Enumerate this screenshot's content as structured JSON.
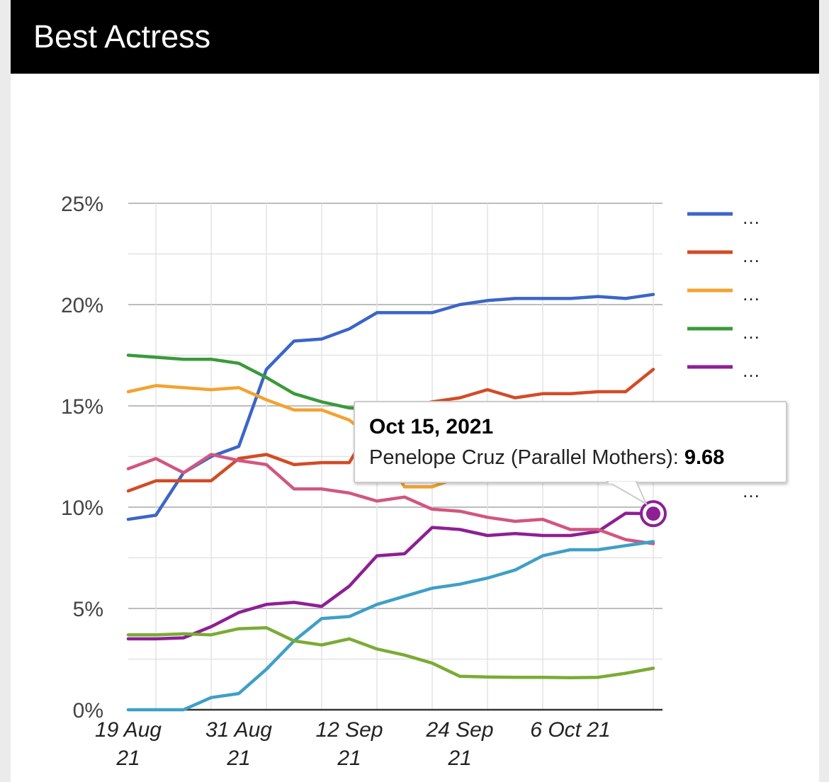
{
  "header": {
    "title": "Best Actress"
  },
  "colors": {
    "header_bg": "#000000",
    "panel_bg": "#ffffff",
    "grid_major": "#bdbdbd",
    "grid_minor": "#e3e3e3"
  },
  "chart_data": {
    "type": "line",
    "title": "Best Actress",
    "xlabel": "",
    "ylabel": "",
    "ylim": [
      0,
      25
    ],
    "xlim": [
      "2021-08-19",
      "2021-10-16"
    ],
    "yticks": [
      "0%",
      "5%",
      "10%",
      "15%",
      "20%",
      "25%"
    ],
    "xtick_labels": [
      {
        "line1": "19 Aug",
        "line2": "21",
        "date": "2021-08-19"
      },
      {
        "line1": "31 Aug",
        "line2": "21",
        "date": "2021-08-31"
      },
      {
        "line1": "12 Sep",
        "line2": "21",
        "date": "2021-09-12"
      },
      {
        "line1": "24 Sep",
        "line2": "21",
        "date": "2021-09-24"
      },
      {
        "line1": "6 Oct 21",
        "line2": "",
        "date": "2021-10-06"
      }
    ],
    "x": [
      "2021-08-19",
      "2021-08-22",
      "2021-08-25",
      "2021-08-28",
      "2021-08-31",
      "2021-09-03",
      "2021-09-06",
      "2021-09-09",
      "2021-09-12",
      "2021-09-15",
      "2021-09-18",
      "2021-09-21",
      "2021-09-24",
      "2021-09-27",
      "2021-09-30",
      "2021-10-03",
      "2021-10-06",
      "2021-10-09",
      "2021-10-12",
      "2021-10-15"
    ],
    "grid": true,
    "legend_position": "right",
    "series": [
      {
        "legend_label": "…",
        "color": "#3b65c8",
        "values": [
          9.4,
          9.6,
          11.7,
          12.5,
          13.0,
          16.8,
          18.2,
          18.3,
          18.8,
          19.6,
          19.6,
          19.6,
          20.0,
          20.2,
          20.3,
          20.3,
          20.3,
          20.4,
          20.3,
          20.5
        ]
      },
      {
        "legend_label": "…",
        "color": "#d34b25",
        "values": [
          10.8,
          11.3,
          11.3,
          11.3,
          12.4,
          12.6,
          12.1,
          12.2,
          12.2,
          14.5,
          14.9,
          15.2,
          15.4,
          15.8,
          15.4,
          15.6,
          15.6,
          15.7,
          15.7,
          16.8
        ]
      },
      {
        "legend_label": "…",
        "color": "#f2a330",
        "values": [
          15.7,
          16.0,
          15.9,
          15.8,
          15.9,
          15.3,
          14.8,
          14.8,
          14.3,
          13.2,
          11.0,
          11.0,
          11.5,
          12.0,
          12.5,
          12.8,
          13.0,
          13.2,
          13.3,
          13.5
        ]
      },
      {
        "legend_label": "…",
        "color": "#3a9a3a",
        "values": [
          17.5,
          17.4,
          17.3,
          17.3,
          17.1,
          16.4,
          15.6,
          15.2,
          14.9,
          14.8,
          14.7,
          14.6,
          14.6,
          14.5,
          14.5,
          14.4,
          14.4,
          14.4,
          14.3,
          14.3
        ]
      },
      {
        "legend_label": "…",
        "color": "#8e1f94",
        "values": [
          3.5,
          3.5,
          3.55,
          4.1,
          4.8,
          5.2,
          5.3,
          5.1,
          6.1,
          7.6,
          7.7,
          9.0,
          8.9,
          8.6,
          8.7,
          8.6,
          8.6,
          8.8,
          9.7,
          9.68
        ]
      },
      {
        "legend_label": "",
        "color": "#d15680",
        "values": [
          11.9,
          12.4,
          11.7,
          12.6,
          12.3,
          12.1,
          10.9,
          10.9,
          10.7,
          10.3,
          10.5,
          9.9,
          9.8,
          9.5,
          9.3,
          9.4,
          8.9,
          8.9,
          8.4,
          8.2
        ]
      },
      {
        "legend_label": "",
        "color": "#3f9fc6",
        "values": [
          0.0,
          0.0,
          0.0,
          0.6,
          0.8,
          2.0,
          3.4,
          4.5,
          4.6,
          5.2,
          5.6,
          6.0,
          6.2,
          6.5,
          6.9,
          7.6,
          7.9,
          7.9,
          8.1,
          8.3
        ]
      },
      {
        "legend_label": "",
        "color": "#7bab35",
        "values": [
          3.7,
          3.7,
          3.75,
          3.7,
          4.0,
          4.05,
          3.4,
          3.2,
          3.5,
          3.0,
          2.7,
          2.3,
          1.65,
          1.62,
          1.6,
          1.6,
          1.58,
          1.6,
          1.8,
          2.05
        ]
      }
    ],
    "hidden_legend_entries": [
      "…"
    ],
    "tooltip": {
      "date": "Oct 15, 2021",
      "label": "Penelope Cruz (Parallel Mothers):",
      "value": "9.68",
      "series_index": 4,
      "point_index": 19
    }
  }
}
